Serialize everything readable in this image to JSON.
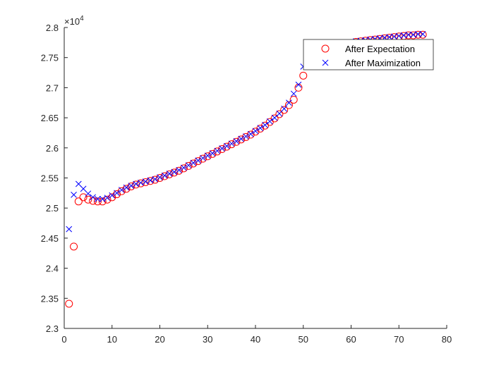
{
  "chart_data": {
    "type": "scatter",
    "title": "",
    "xlabel": "",
    "ylabel": "",
    "xlim": [
      0,
      80
    ],
    "ylim": [
      2.3,
      2.8
    ],
    "xticks": [
      "0",
      "10",
      "20",
      "30",
      "40",
      "50",
      "60",
      "70",
      "80"
    ],
    "yticks": [
      "2.3",
      "2.35",
      "2.4",
      "2.45",
      "2.5",
      "2.55",
      "2.6",
      "2.65",
      "2.7",
      "2.75",
      "2.8"
    ],
    "y_exponent_label": "×10",
    "y_exponent_power": "4",
    "grid": false,
    "legend_position": "top-right",
    "colors": {
      "expectation": "#ff0000",
      "maximization": "#0000ff"
    },
    "series": [
      {
        "name": "After Expectation",
        "marker": "circle",
        "x": [
          1,
          2,
          3,
          4,
          5,
          6,
          7,
          8,
          9,
          10,
          11,
          12,
          13,
          14,
          15,
          16,
          17,
          18,
          19,
          20,
          21,
          22,
          23,
          24,
          25,
          26,
          27,
          28,
          29,
          30,
          31,
          32,
          33,
          34,
          35,
          36,
          37,
          38,
          39,
          40,
          41,
          42,
          43,
          44,
          45,
          46,
          47,
          48,
          49,
          50,
          51,
          52,
          53,
          54,
          55,
          56,
          57,
          58,
          59,
          60,
          61,
          62,
          63,
          64,
          65,
          66,
          67,
          68,
          69,
          70,
          71,
          72,
          73,
          74,
          75
        ],
        "values": [
          2.341,
          2.436,
          2.511,
          2.518,
          2.514,
          2.512,
          2.511,
          2.511,
          2.514,
          2.518,
          2.523,
          2.528,
          2.532,
          2.536,
          2.539,
          2.541,
          2.543,
          2.545,
          2.547,
          2.55,
          2.553,
          2.556,
          2.559,
          2.562,
          2.566,
          2.57,
          2.574,
          2.578,
          2.582,
          2.586,
          2.59,
          2.594,
          2.598,
          2.602,
          2.606,
          2.61,
          2.614,
          2.618,
          2.622,
          2.627,
          2.632,
          2.637,
          2.643,
          2.649,
          2.656,
          2.663,
          2.671,
          2.68,
          2.7,
          2.72,
          2.738,
          2.746,
          2.752,
          2.758,
          2.762,
          2.766,
          2.769,
          2.771,
          2.773,
          2.774,
          2.776,
          2.777,
          2.778,
          2.779,
          2.78,
          2.781,
          2.782,
          2.783,
          2.784,
          2.785,
          2.786,
          2.787,
          2.787,
          2.788,
          2.788
        ]
      },
      {
        "name": "After Maximization",
        "marker": "x",
        "x": [
          1,
          2,
          3,
          4,
          5,
          6,
          7,
          8,
          9,
          10,
          11,
          12,
          13,
          14,
          15,
          16,
          17,
          18,
          19,
          20,
          21,
          22,
          23,
          24,
          25,
          26,
          27,
          28,
          29,
          30,
          31,
          32,
          33,
          34,
          35,
          36,
          37,
          38,
          39,
          40,
          41,
          42,
          43,
          44,
          45,
          46,
          47,
          48,
          49,
          50,
          51,
          52,
          53,
          54,
          55,
          56,
          57,
          58,
          59,
          60,
          61,
          62,
          63,
          64,
          65,
          66,
          67,
          68,
          69,
          70,
          71,
          72,
          73,
          74,
          75
        ],
        "values": [
          2.465,
          2.522,
          2.54,
          2.532,
          2.524,
          2.518,
          2.515,
          2.515,
          2.517,
          2.521,
          2.525,
          2.53,
          2.534,
          2.537,
          2.54,
          2.542,
          2.544,
          2.546,
          2.548,
          2.551,
          2.554,
          2.557,
          2.56,
          2.563,
          2.567,
          2.571,
          2.575,
          2.579,
          2.583,
          2.587,
          2.591,
          2.595,
          2.599,
          2.603,
          2.607,
          2.611,
          2.615,
          2.619,
          2.623,
          2.628,
          2.633,
          2.638,
          2.644,
          2.65,
          2.657,
          2.665,
          2.675,
          2.69,
          2.705,
          2.735,
          2.742,
          2.748,
          2.754,
          2.759,
          2.763,
          2.767,
          2.77,
          2.772,
          2.774,
          2.775,
          2.777,
          2.778,
          2.779,
          2.78,
          2.781,
          2.782,
          2.783,
          2.784,
          2.785,
          2.786,
          2.787,
          2.788,
          2.788,
          2.789,
          2.789
        ]
      }
    ]
  }
}
